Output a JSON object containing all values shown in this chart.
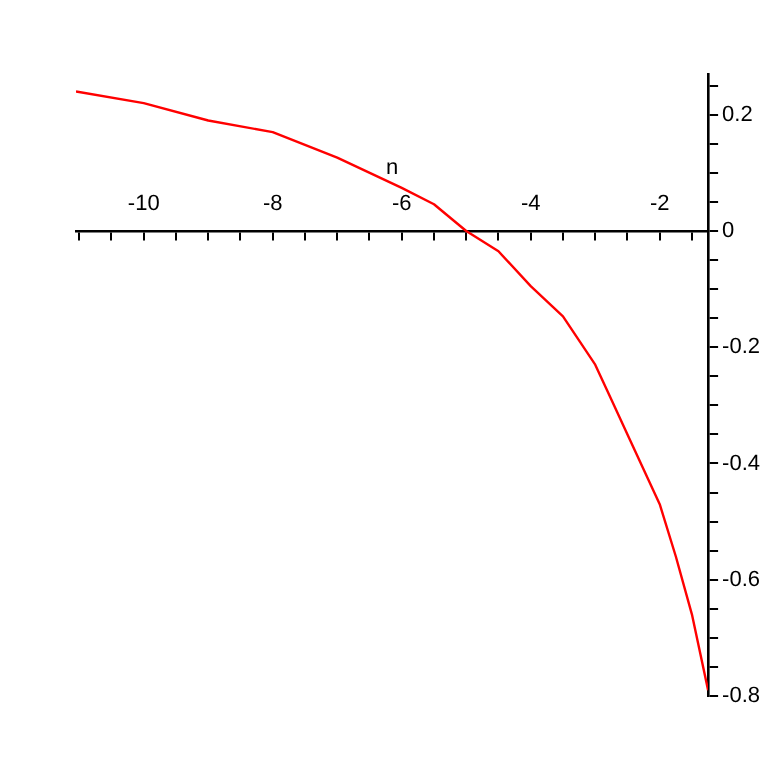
{
  "chart_data": {
    "type": "line",
    "xlabel": "n",
    "grid": false,
    "marker": "none",
    "line_style": "solid",
    "x": [
      -11.05,
      -10,
      -9,
      -8,
      -7,
      -6,
      -5.5,
      -5,
      -4.5,
      -4,
      -3.5,
      -3,
      -2.75,
      -2.5,
      -2,
      -1.75,
      -1.5,
      -1.25
    ],
    "series": [
      {
        "color": "#ff0000",
        "values": [
          0.24,
          0.22,
          0.19,
          0.17,
          0.126,
          0.074,
          0.046,
          0,
          -0.035,
          -0.095,
          -0.147,
          -0.23,
          -0.29,
          -0.35,
          -0.47,
          -0.56,
          -0.66,
          -0.79
        ]
      }
    ],
    "xlim": [
      -11.05,
      -1.25
    ],
    "ylim": [
      -0.8,
      0.27
    ],
    "xticks": [
      {
        "value": -11,
        "label": null
      },
      {
        "value": -10.5,
        "label": null
      },
      -10,
      {
        "value": -9.5,
        "label": null
      },
      {
        "value": -9,
        "label": null
      },
      {
        "value": -8.5,
        "label": null
      },
      -8,
      {
        "value": -7.5,
        "label": null
      },
      {
        "value": -7,
        "label": null
      },
      {
        "value": -6.5,
        "label": null
      },
      -6,
      {
        "value": -5.5,
        "label": null
      },
      {
        "value": -5,
        "label": null
      },
      {
        "value": -4.5,
        "label": null
      },
      -4,
      {
        "value": -3.5,
        "label": null
      },
      {
        "value": -3,
        "label": null
      },
      {
        "value": -2.5,
        "label": null
      },
      -2,
      {
        "value": -1.5,
        "label": null
      }
    ],
    "yticks": [
      -0.8,
      {
        "value": -0.75,
        "label": null
      },
      {
        "value": -0.7,
        "label": null
      },
      {
        "value": -0.65,
        "label": null
      },
      -0.6,
      {
        "value": -0.55,
        "label": null
      },
      {
        "value": -0.5,
        "label": null
      },
      {
        "value": -0.45,
        "label": null
      },
      -0.4,
      {
        "value": -0.35,
        "label": null
      },
      {
        "value": -0.3,
        "label": null
      },
      {
        "value": -0.25,
        "label": null
      },
      -0.2,
      {
        "value": -0.15,
        "label": null
      },
      {
        "value": -0.1,
        "label": null
      },
      {
        "value": -0.05,
        "label": null
      },
      0,
      {
        "value": 0.05,
        "label": null
      },
      {
        "value": 0.1,
        "label": null
      },
      {
        "value": 0.15,
        "label": null
      },
      0.2,
      {
        "value": 0.25,
        "label": null
      }
    ]
  }
}
